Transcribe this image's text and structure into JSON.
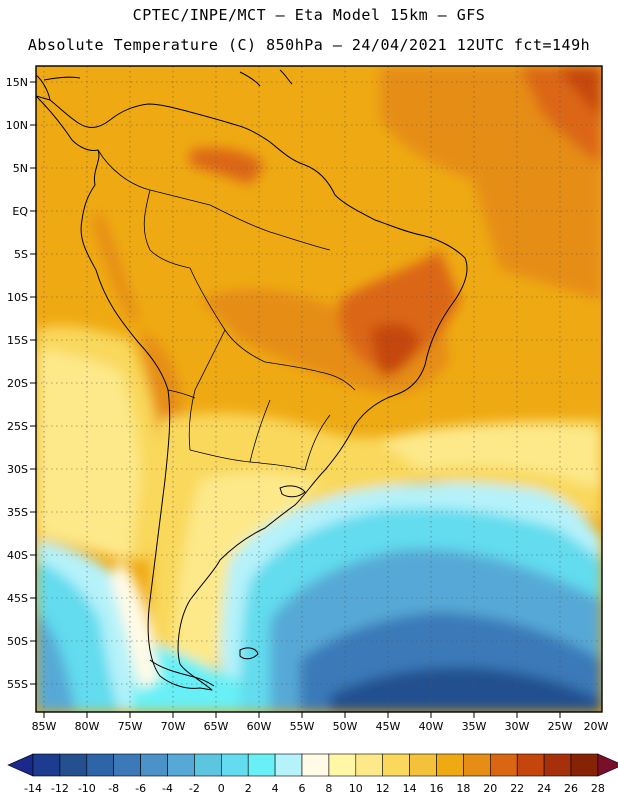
{
  "title_line1": "CPTEC/INPE/MCT  –   Eta Model 15km  –  GFS",
  "title_line2": "Absolute Temperature (C) 850hPa – 24/04/2021 12UTC fct=149h",
  "lat_labels": [
    "15N",
    "10N",
    "5N",
    "EQ",
    "5S",
    "10S",
    "15S",
    "20S",
    "25S",
    "30S",
    "35S",
    "40S",
    "45S",
    "50S",
    "55S"
  ],
  "lon_labels": [
    "85W",
    "80W",
    "75W",
    "70W",
    "65W",
    "60W",
    "55W",
    "50W",
    "45W",
    "40W",
    "35W",
    "30W",
    "25W",
    "20W"
  ],
  "colorbar": {
    "labels": [
      "-14",
      "-12",
      "-10",
      "-8",
      "-6",
      "-4",
      "-2",
      "0",
      "2",
      "4",
      "6",
      "8",
      "10",
      "12",
      "14",
      "16",
      "18",
      "20",
      "22",
      "24",
      "26",
      "28"
    ],
    "colors": [
      "#1d3c8f",
      "#24508f",
      "#2e64a8",
      "#3b79b9",
      "#4b92c8",
      "#56a9d6",
      "#5cc6e0",
      "#62dcee",
      "#68f0f6",
      "#b5f2fa",
      "#fffbe6",
      "#fff6a6",
      "#fde98a",
      "#f9d85c",
      "#f3c23a",
      "#efaa13",
      "#e68d16",
      "#db6612",
      "#c5460c",
      "#a6300b",
      "#862206"
    ],
    "under_color": "#1b2a8a",
    "over_color": "#7a0f2a"
  }
}
